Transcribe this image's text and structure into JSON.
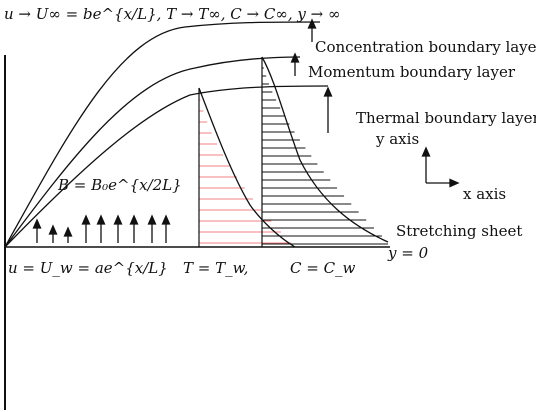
{
  "labels": {
    "top_condition": "u → U∞ = be^{x/L}, T → T∞, C → C∞, y → ∞",
    "concentration_layer": "Concentration boundary layer",
    "momentum_layer": "Momentum boundary layer",
    "thermal_layer": "Thermal boundary layer",
    "y_axis": "y axis",
    "x_axis": "x axis",
    "magnetic_field": "B = B₀e^{x/2L}",
    "stretching_sheet": "Stretching sheet",
    "y_zero": "y = 0",
    "wall_velocity": "u = U_w = ae^{x/L}",
    "wall_temperature": "T = T_w,",
    "wall_concentration": "C = C_w"
  },
  "colors": {
    "ink": "#111111",
    "thermal_hatch": "#f08080"
  }
}
